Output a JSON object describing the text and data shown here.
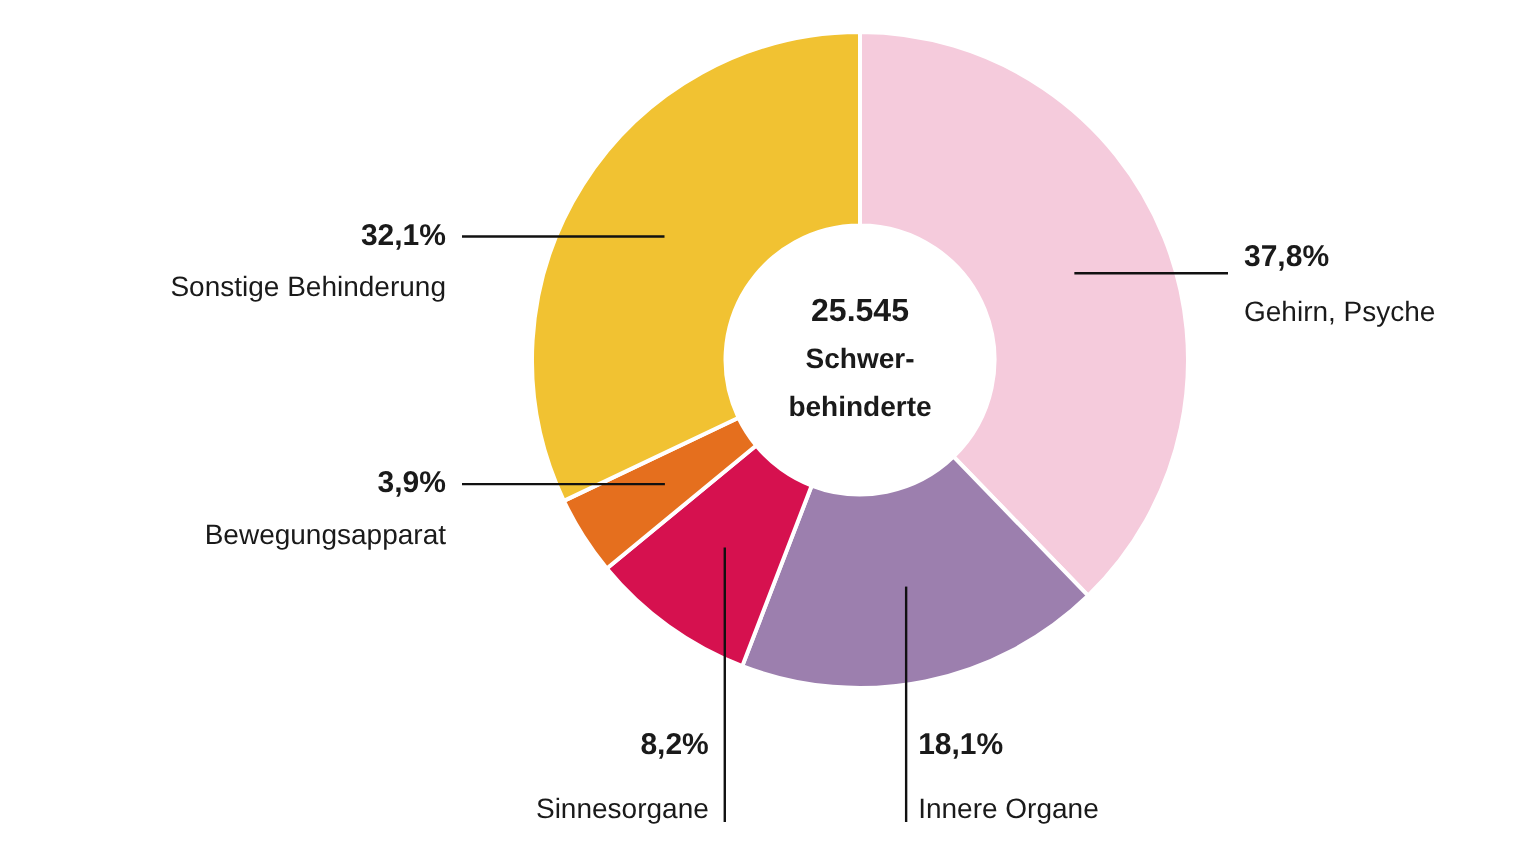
{
  "chart_data": {
    "type": "donut",
    "categories": [
      "Gehirn, Psyche",
      "Innere Organe",
      "Sinnesorgane",
      "Bewegungsapparat",
      "Sonstige Behinderung"
    ],
    "values": [
      37.8,
      18.1,
      8.2,
      3.9,
      32.1
    ],
    "value_labels": [
      "37,8%",
      "18,1%",
      "8,2%",
      "3,9%",
      "32,1%"
    ],
    "colors": [
      "#f5cbdc",
      "#9c7fae",
      "#d6114f",
      "#e56f1e",
      "#f1c232"
    ],
    "annotations": [
      "25.545",
      "Schwer-",
      "behinderte"
    ],
    "legend": false
  }
}
